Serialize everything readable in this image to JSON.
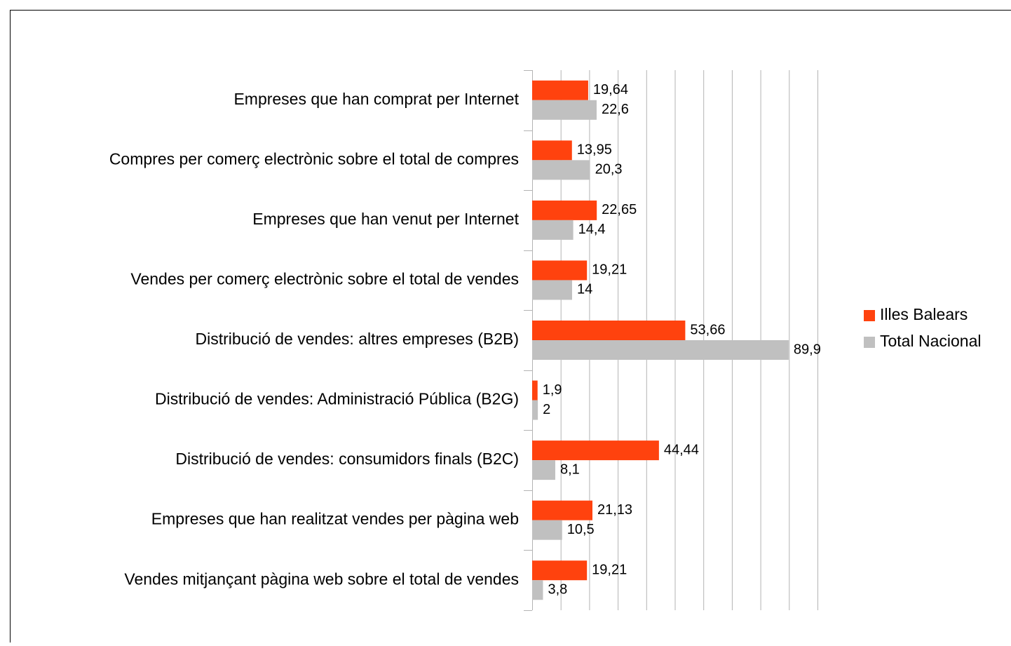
{
  "chart_data": {
    "type": "bar",
    "orientation": "horizontal",
    "categories": [
      "Empreses que han comprat per Internet",
      "Compres per comerç electrònic sobre el total de compres",
      "Empreses que han venut per Internet",
      "Vendes per comerç electrònic sobre el total de vendes",
      "Distribució de vendes: altres empreses (B2B)",
      "Distribució de vendes: Administració Pública (B2G)",
      "Distribució de vendes: consumidors finals (B2C)",
      "Empreses que han realitzat vendes per pàgina web",
      "Vendes mitjançant pàgina web sobre el total de vendes"
    ],
    "series": [
      {
        "name": "Illes Balears",
        "color": "#ff420e",
        "values": [
          19.64,
          13.95,
          22.65,
          19.21,
          53.66,
          1.9,
          44.44,
          21.13,
          19.21
        ],
        "value_labels": [
          "19,64",
          "13,95",
          "22,65",
          "19,21",
          "53,66",
          "1,9",
          "44,44",
          "21,13",
          "19,21"
        ]
      },
      {
        "name": "Total Nacional",
        "color": "#c0c0c0",
        "values": [
          22.6,
          20.3,
          14.4,
          14,
          89.9,
          2,
          8.1,
          10.5,
          3.8
        ],
        "value_labels": [
          "22,6",
          "20,3",
          "14,4",
          "14",
          "89,9",
          "2",
          "8,1",
          "10,5",
          "3,8"
        ]
      }
    ],
    "xlim": [
      0,
      100
    ],
    "xticks": [
      0,
      10,
      20,
      30,
      40,
      50,
      60,
      70,
      80,
      90,
      100
    ],
    "grid": true,
    "legend": "right"
  }
}
